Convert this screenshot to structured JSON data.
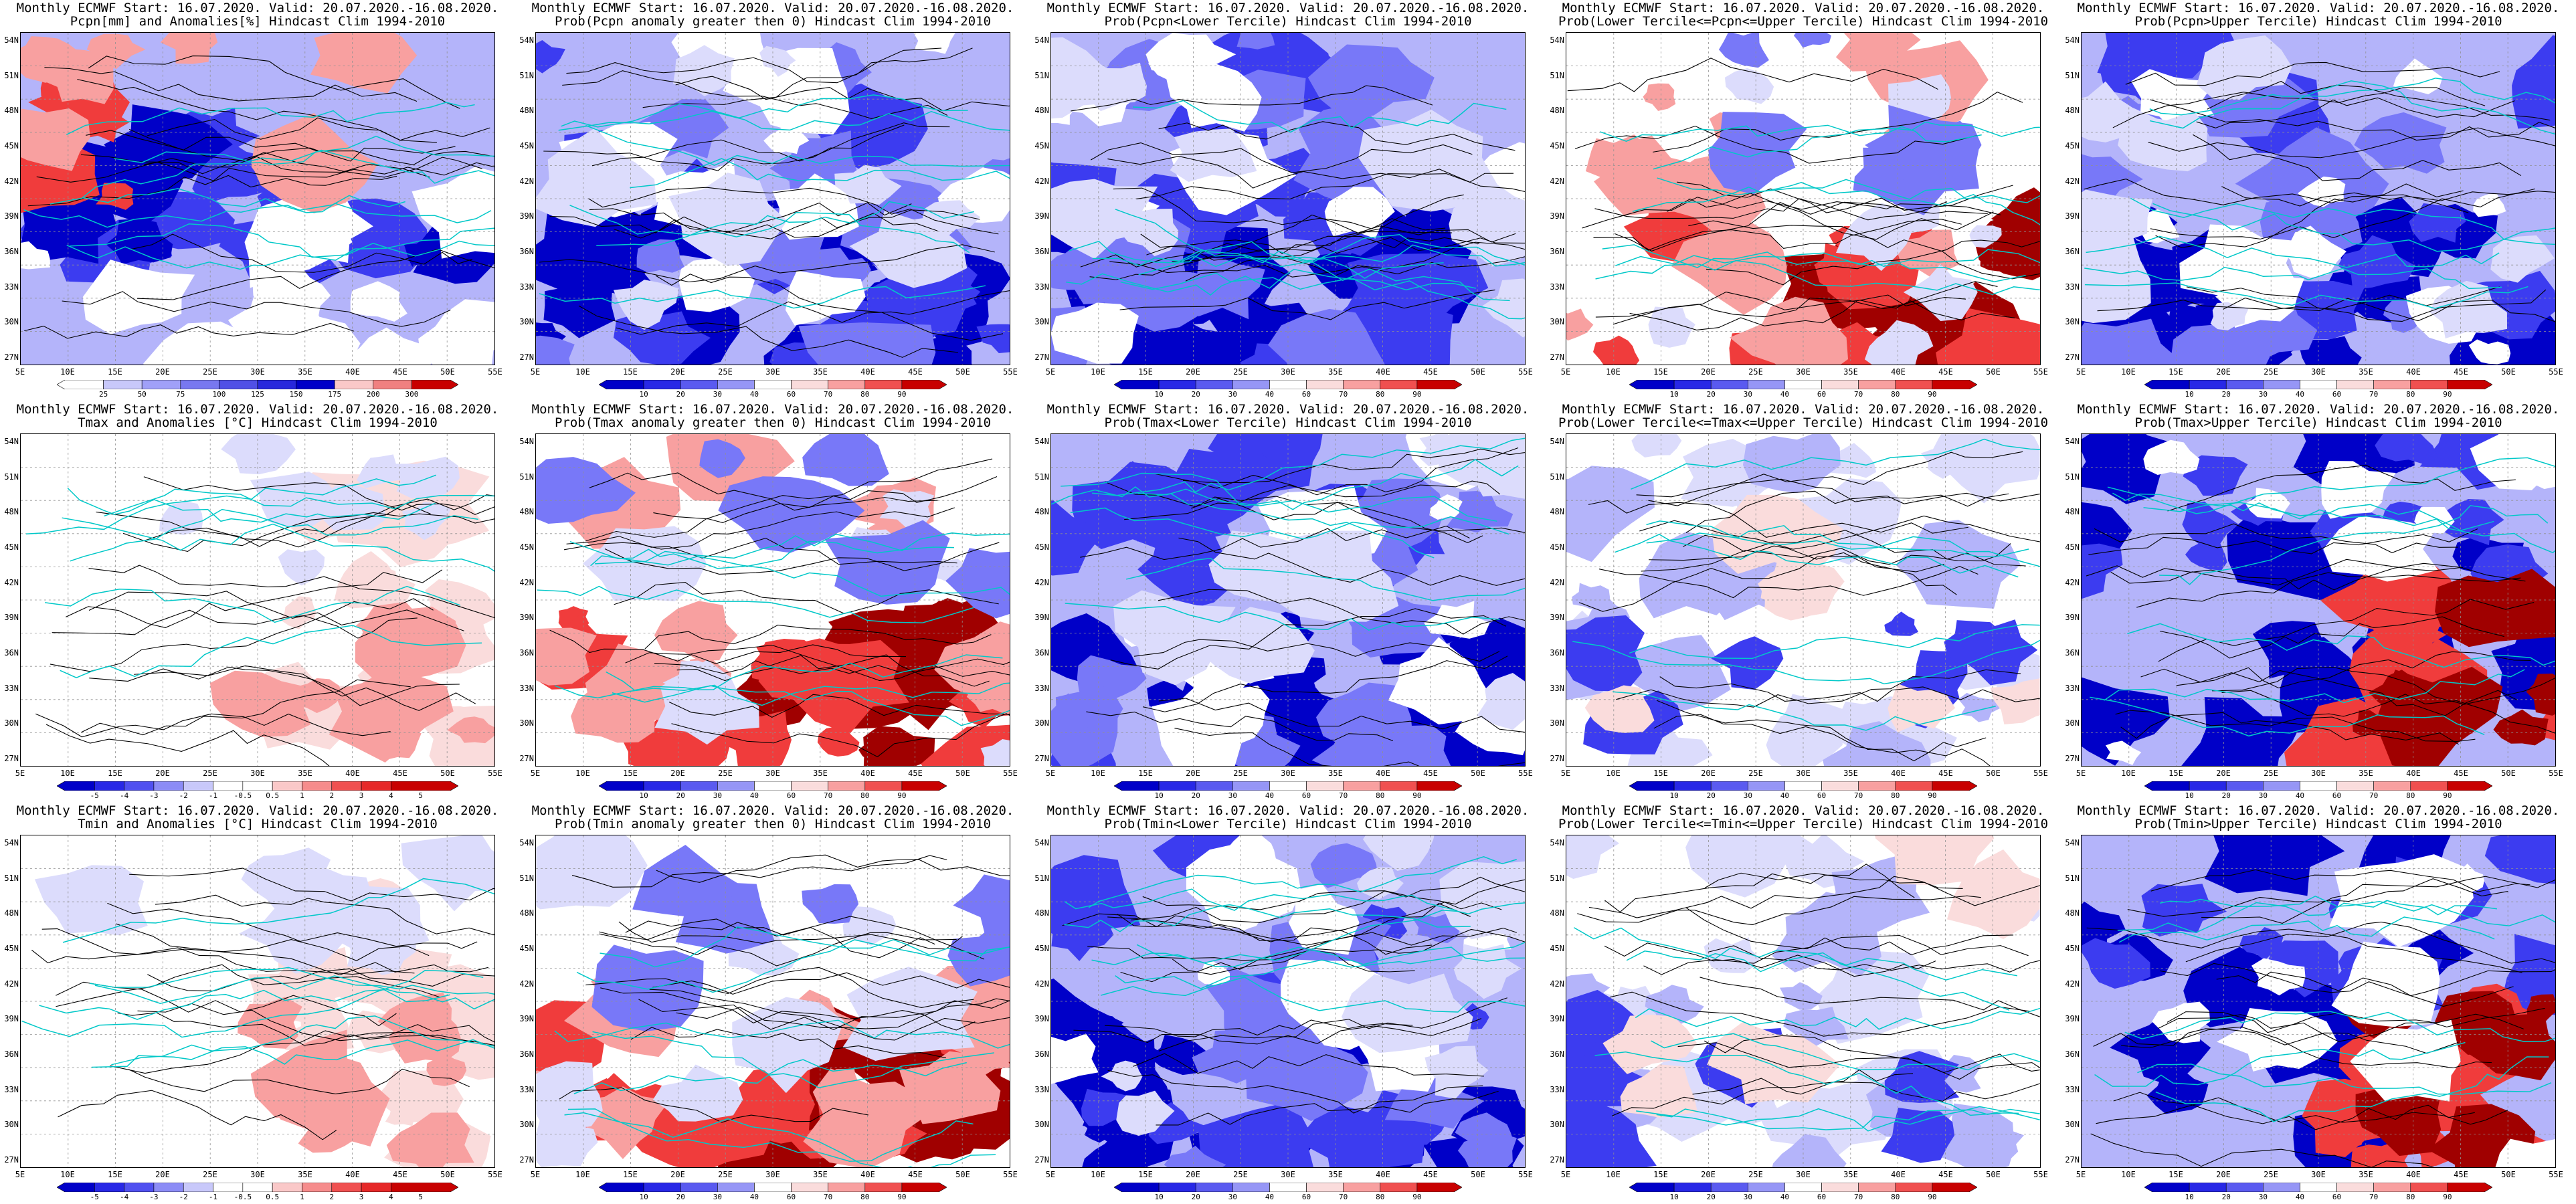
{
  "page": {
    "panels": [
      {
        "id": "p-r1c1",
        "title1": "Monthly ECMWF Start: 16.07.2020. Valid: 20.07.2020.-16.08.2020.",
        "title2": "Pcpn[mm] and Anomalies[%] Hindcast Clim 1994-2010",
        "kind": "pcpn",
        "scale": [
          "25",
          "50",
          "75",
          "100",
          "125",
          "150",
          "175",
          "200",
          "300"
        ]
      },
      {
        "id": "p-r1c2",
        "title1": "Monthly ECMWF Start: 16.07.2020. Valid: 20.07.2020.-16.08.2020.",
        "title2": "Prob(Pcpn anomaly greater then 0) Hindcast Clim 1994-2010",
        "kind": "blue",
        "scale": [
          "10",
          "20",
          "30",
          "40",
          "60",
          "70",
          "80",
          "90"
        ]
      },
      {
        "id": "p-r1c3",
        "title1": "Monthly ECMWF Start: 16.07.2020. Valid: 20.07.2020.-16.08.2020.",
        "title2": "Prob(Pcpn<Lower Tercile) Hindcast Clim 1994-2010",
        "kind": "blue",
        "scale": [
          "10",
          "20",
          "30",
          "40",
          "60",
          "70",
          "80",
          "90"
        ]
      },
      {
        "id": "p-r1c4",
        "title1": "Monthly ECMWF Start: 16.07.2020. Valid: 20.07.2020.-16.08.2020.",
        "title2": "Prob(Lower Tercile<=Pcpn<=Upper Tercile) Hindcast Clim 1994-2010",
        "kind": "red",
        "scale": [
          "10",
          "20",
          "30",
          "40",
          "60",
          "70",
          "80",
          "90"
        ]
      },
      {
        "id": "p-r1c5",
        "title1": "Monthly ECMWF Start: 16.07.2020. Valid: 20.07.2020.-16.08.2020.",
        "title2": "Prob(Pcpn>Upper Tercile) Hindcast Clim 1994-2010",
        "kind": "blue",
        "scale": [
          "10",
          "20",
          "30",
          "40",
          "60",
          "70",
          "80",
          "90"
        ]
      },
      {
        "id": "p-r2c1",
        "title1": "Monthly ECMWF Start: 16.07.2020. Valid: 20.07.2020.-16.08.2020.",
        "title2": "Tmax and Anomalies [°C] Hindcast Clim 1994-2010",
        "kind": "anomwhite",
        "scale": [
          "-5",
          "-4",
          "-3",
          "-2",
          "-1",
          "-0.5",
          "0.5",
          "1",
          "2",
          "3",
          "4",
          "5"
        ]
      },
      {
        "id": "p-r2c2",
        "title1": "Monthly ECMWF Start: 16.07.2020. Valid: 20.07.2020.-16.08.2020.",
        "title2": "Prob(Tmax anomaly greater then 0) Hindcast Clim 1994-2010",
        "kind": "red",
        "scale": [
          "10",
          "20",
          "30",
          "40",
          "60",
          "70",
          "80",
          "90"
        ]
      },
      {
        "id": "p-r2c3",
        "title1": "Monthly ECMWF Start: 16.07.2020. Valid: 20.07.2020.-16.08.2020.",
        "title2": "Prob(Tmax<Lower Tercile) Hindcast Clim 1994-2010",
        "kind": "blue",
        "scale": [
          "10",
          "20",
          "30",
          "40",
          "60",
          "70",
          "80",
          "90"
        ]
      },
      {
        "id": "p-r2c4",
        "title1": "Monthly ECMWF Start: 16.07.2020. Valid: 20.07.2020.-16.08.2020.",
        "title2": "Prob(Lower Tercile<=Tmax<=Upper Tercile) Hindcast Clim 1994-2010",
        "kind": "paleblue",
        "scale": [
          "10",
          "20",
          "30",
          "40",
          "60",
          "70",
          "80",
          "90"
        ]
      },
      {
        "id": "p-r2c5",
        "title1": "Monthly ECMWF Start: 16.07.2020. Valid: 20.07.2020.-16.08.2020.",
        "title2": "Prob(Tmax>Upper Tercile) Hindcast Clim 1994-2010",
        "kind": "redblue",
        "scale": [
          "10",
          "20",
          "30",
          "40",
          "60",
          "70",
          "80",
          "90"
        ]
      },
      {
        "id": "p-r3c1",
        "title1": "Monthly ECMWF Start: 16.07.2020. Valid: 20.07.2020.-16.08.2020.",
        "title2": "Tmin and Anomalies [°C] Hindcast Clim 1994-2010",
        "kind": "anomwhite",
        "scale": [
          "-5",
          "-4",
          "-3",
          "-2",
          "-1",
          "-0.5",
          "0.5",
          "1",
          "2",
          "3",
          "4",
          "5"
        ]
      },
      {
        "id": "p-r3c2",
        "title1": "Monthly ECMWF Start: 16.07.2020. Valid: 20.07.2020.-16.08.2020.",
        "title2": "Prob(Tmin anomaly greater then 0) Hindcast Clim 1994-2010",
        "kind": "red",
        "scale": [
          "10",
          "20",
          "30",
          "40",
          "60",
          "70",
          "80",
          "90"
        ]
      },
      {
        "id": "p-r3c3",
        "title1": "Monthly ECMWF Start: 16.07.2020. Valid: 20.07.2020.-16.08.2020.",
        "title2": "Prob(Tmin<Lower Tercile) Hindcast Clim 1994-2010",
        "kind": "blue",
        "scale": [
          "10",
          "20",
          "30",
          "40",
          "60",
          "70",
          "80",
          "90"
        ]
      },
      {
        "id": "p-r3c4",
        "title1": "Monthly ECMWF Start: 16.07.2020. Valid: 20.07.2020.-16.08.2020.",
        "title2": "Prob(Lower Tercile<=Tmin<=Upper Tercile) Hindcast Clim 1994-2010",
        "kind": "paleblue",
        "scale": [
          "10",
          "20",
          "30",
          "40",
          "60",
          "70",
          "80",
          "90"
        ]
      },
      {
        "id": "p-r3c5",
        "title1": "Monthly ECMWF Start: 16.07.2020. Valid: 20.07.2020.-16.08.2020.",
        "title2": "Prob(Tmin>Upper Tercile) Hindcast Clim 1994-2010",
        "kind": "redblue",
        "scale": [
          "10",
          "20",
          "30",
          "40",
          "60",
          "70",
          "80",
          "90"
        ]
      }
    ],
    "lat_labels": [
      "54N",
      "51N",
      "48N",
      "45N",
      "42N",
      "39N",
      "36N",
      "33N",
      "30N",
      "27N"
    ],
    "lon_labels": [
      "5E",
      "10E",
      "15E",
      "20E",
      "25E",
      "30E",
      "35E",
      "40E",
      "45E",
      "50E",
      "55E"
    ],
    "colors": {
      "dark_blue": "#0000c8",
      "blue": "#3c3cf0",
      "mid_blue": "#7878f8",
      "light_blue": "#b4b4fa",
      "pale_blue": "#dcdcfc",
      "pale_red": "#fadcdc",
      "light_red": "#f8a0a0",
      "red": "#f03c3c",
      "dark_red": "#a00000",
      "coast": "#00c8c8",
      "contour": "#000000"
    }
  }
}
